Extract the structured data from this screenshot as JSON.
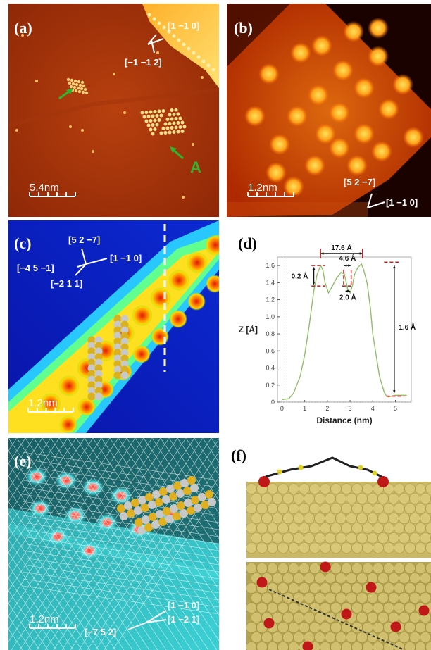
{
  "panels": {
    "a": {
      "label": "(a)",
      "scale": "5.4nm",
      "dir1": "[1 −1 0]",
      "dir2": "[−1 −1 2]",
      "marker": "A"
    },
    "b": {
      "label": "(b)",
      "scale": "1.2nm",
      "dir1": "[5 2 −7]",
      "dir2": "[1 −1 0]"
    },
    "c": {
      "label": "(c)",
      "scale": "1.2nm",
      "dir1": "[5 2 −7]",
      "dir2": "[−4 5 −1]",
      "dir3": "[1 −1 0]",
      "dir4": "[−2 1 1]"
    },
    "d": {
      "label": "(d)"
    },
    "e": {
      "label": "(e)",
      "scale": "1.2nm",
      "dir1": "[1 −1 0]",
      "dir2": "[1 −2 1]",
      "dir3": "[−7 5 2]"
    },
    "f": {
      "label": "(f)"
    }
  },
  "colors": {
    "afm": "#b43c0c",
    "stm_hot": "#ffd000",
    "profile": "#8fbf6a",
    "marker": "#d21e1e"
  },
  "chart_data": {
    "type": "line",
    "title": "",
    "xlabel": "Distance (nm)",
    "ylabel": "Z [Å]",
    "xlim": [
      -0.2,
      5.7
    ],
    "ylim": [
      0,
      1.7
    ],
    "x_ticks": [
      "0",
      "1",
      "2",
      "3",
      "4",
      "5"
    ],
    "y_ticks": [
      "0",
      "0.2",
      "0.4",
      "0.6",
      "0.8",
      "1.0",
      "1.2",
      "1.4",
      "1.6"
    ],
    "series": [
      {
        "x": [
          0,
          0.3,
          0.5,
          0.8,
          1.0,
          1.2,
          1.4,
          1.55,
          1.7,
          1.8,
          1.9,
          2.05,
          2.2,
          2.4,
          2.6,
          2.75,
          2.9,
          3.0,
          3.1,
          3.2,
          3.35,
          3.5,
          3.6,
          3.75,
          3.9,
          4.0,
          4.15,
          4.3,
          4.5,
          4.6,
          4.7,
          4.85,
          5.0,
          5.2,
          5.5
        ],
        "y": [
          0.03,
          0.04,
          0.1,
          0.3,
          0.55,
          0.9,
          1.3,
          1.5,
          1.6,
          1.55,
          1.4,
          1.28,
          1.35,
          1.45,
          1.52,
          1.5,
          1.32,
          1.28,
          1.36,
          1.5,
          1.58,
          1.62,
          1.55,
          1.4,
          1.1,
          0.8,
          0.55,
          0.3,
          0.12,
          0.07,
          0.06,
          0.07,
          0.08,
          0.08,
          0.08
        ]
      }
    ],
    "annotations": [
      "17.6 Å",
      "4.6 Å",
      "0.2 Å",
      "2.0 Å",
      "1.6 Å"
    ]
  }
}
